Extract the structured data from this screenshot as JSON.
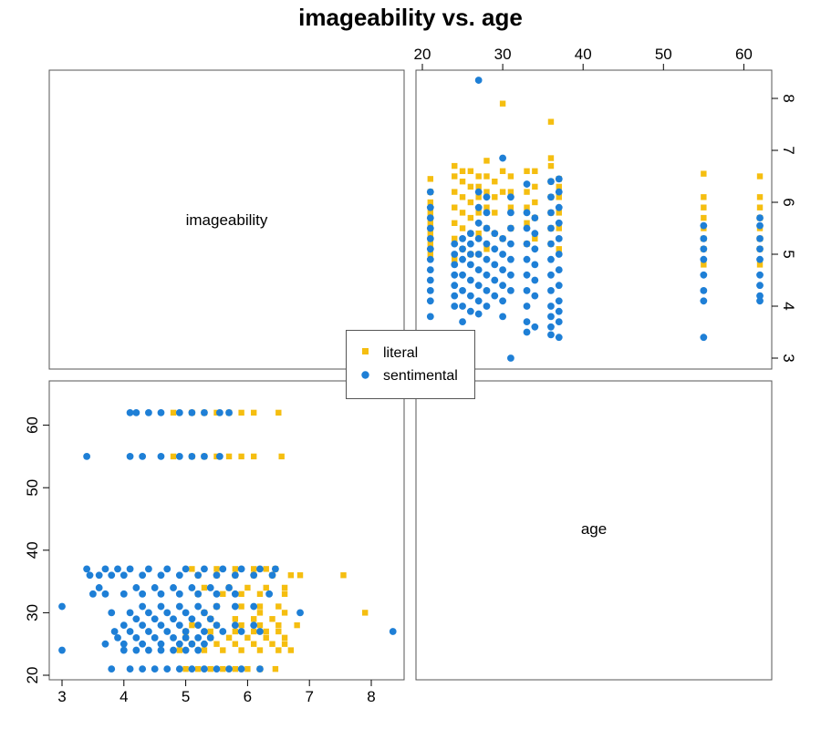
{
  "title": "imageability vs. age",
  "diag_labels": [
    "imageability",
    "age"
  ],
  "colors": {
    "literal": "#F5BE10",
    "sentimental": "#1E7FD6"
  },
  "chart_data": {
    "type": "scatter",
    "title": "imageability vs. age",
    "variables": [
      "imageability",
      "age"
    ],
    "axes": {
      "imageability": {
        "range": [
          3,
          8.4
        ],
        "ticks": [
          "3",
          "4",
          "5",
          "6",
          "7",
          "8"
        ]
      },
      "age": {
        "range": [
          20,
          63
        ],
        "ticks": [
          "20",
          "30",
          "40",
          "50",
          "60"
        ]
      }
    },
    "legend": {
      "position": "center",
      "entries": [
        "literal",
        "sentimental"
      ]
    },
    "series": [
      {
        "name": "literal",
        "marker": "square",
        "color": "#F5BE10",
        "points": [
          [
            5.0,
            21
          ],
          [
            5.2,
            21
          ],
          [
            5.4,
            21
          ],
          [
            5.6,
            21
          ],
          [
            5.8,
            21
          ],
          [
            6.0,
            21
          ],
          [
            6.2,
            21
          ],
          [
            6.45,
            21
          ],
          [
            4.9,
            24
          ],
          [
            5.3,
            24
          ],
          [
            5.6,
            24
          ],
          [
            5.9,
            24
          ],
          [
            6.2,
            24
          ],
          [
            6.5,
            24
          ],
          [
            6.7,
            24
          ],
          [
            5.1,
            25
          ],
          [
            5.5,
            25
          ],
          [
            5.8,
            25
          ],
          [
            6.1,
            25
          ],
          [
            6.4,
            25
          ],
          [
            6.6,
            25
          ],
          [
            5.0,
            26
          ],
          [
            5.4,
            26
          ],
          [
            5.7,
            26
          ],
          [
            6.0,
            26
          ],
          [
            6.3,
            26
          ],
          [
            6.6,
            26
          ],
          [
            5.0,
            27
          ],
          [
            5.4,
            27
          ],
          [
            5.8,
            27
          ],
          [
            6.1,
            27
          ],
          [
            6.3,
            27
          ],
          [
            6.5,
            27
          ],
          [
            5.1,
            28
          ],
          [
            5.5,
            28
          ],
          [
            5.9,
            28
          ],
          [
            6.2,
            28
          ],
          [
            6.5,
            28
          ],
          [
            6.8,
            28
          ],
          [
            5.4,
            29
          ],
          [
            5.8,
            29
          ],
          [
            6.1,
            29
          ],
          [
            6.4,
            29
          ],
          [
            7.9,
            30
          ],
          [
            5.3,
            30
          ],
          [
            6.2,
            30
          ],
          [
            6.6,
            30
          ],
          [
            5.5,
            31
          ],
          [
            5.9,
            31
          ],
          [
            6.2,
            31
          ],
          [
            6.5,
            31
          ],
          [
            5.2,
            33
          ],
          [
            5.6,
            33
          ],
          [
            5.9,
            33
          ],
          [
            6.2,
            33
          ],
          [
            6.6,
            33
          ],
          [
            5.3,
            34
          ],
          [
            5.7,
            34
          ],
          [
            6.0,
            34
          ],
          [
            6.3,
            34
          ],
          [
            6.6,
            34
          ],
          [
            5.2,
            36
          ],
          [
            5.5,
            36
          ],
          [
            5.8,
            36
          ],
          [
            6.1,
            36
          ],
          [
            6.4,
            36
          ],
          [
            6.7,
            36
          ],
          [
            6.85,
            36
          ],
          [
            7.55,
            36
          ],
          [
            5.1,
            37
          ],
          [
            5.5,
            37
          ],
          [
            5.8,
            37
          ],
          [
            6.1,
            37
          ],
          [
            6.3,
            37
          ],
          [
            6.45,
            37
          ],
          [
            4.8,
            55
          ],
          [
            5.1,
            55
          ],
          [
            5.3,
            55
          ],
          [
            5.5,
            55
          ],
          [
            5.7,
            55
          ],
          [
            5.9,
            55
          ],
          [
            6.1,
            55
          ],
          [
            6.55,
            55
          ],
          [
            4.8,
            62
          ],
          [
            5.1,
            62
          ],
          [
            5.3,
            62
          ],
          [
            5.5,
            62
          ],
          [
            5.7,
            62
          ],
          [
            5.9,
            62
          ],
          [
            6.1,
            62
          ],
          [
            6.5,
            62
          ]
        ]
      },
      {
        "name": "sentimental",
        "marker": "circle",
        "color": "#1E7FD6",
        "points": [
          [
            3.8,
            21
          ],
          [
            4.1,
            21
          ],
          [
            4.3,
            21
          ],
          [
            4.5,
            21
          ],
          [
            4.7,
            21
          ],
          [
            4.9,
            21
          ],
          [
            5.1,
            21
          ],
          [
            5.3,
            21
          ],
          [
            5.5,
            21
          ],
          [
            5.7,
            21
          ],
          [
            5.9,
            21
          ],
          [
            6.2,
            21
          ],
          [
            3.0,
            24
          ],
          [
            4.0,
            24
          ],
          [
            4.2,
            24
          ],
          [
            4.4,
            24
          ],
          [
            4.6,
            24
          ],
          [
            4.8,
            24
          ],
          [
            5.0,
            24
          ],
          [
            5.2,
            24
          ],
          [
            3.7,
            25
          ],
          [
            4.0,
            25
          ],
          [
            4.3,
            25
          ],
          [
            4.6,
            25
          ],
          [
            4.9,
            25
          ],
          [
            5.1,
            25
          ],
          [
            5.3,
            25
          ],
          [
            3.9,
            26
          ],
          [
            4.2,
            26
          ],
          [
            4.5,
            26
          ],
          [
            4.8,
            26
          ],
          [
            5.0,
            26
          ],
          [
            5.2,
            26
          ],
          [
            5.4,
            26
          ],
          [
            8.35,
            27
          ],
          [
            3.85,
            27
          ],
          [
            4.1,
            27
          ],
          [
            4.4,
            27
          ],
          [
            4.7,
            27
          ],
          [
            5.0,
            27
          ],
          [
            5.3,
            27
          ],
          [
            5.6,
            27
          ],
          [
            5.9,
            27
          ],
          [
            6.2,
            27
          ],
          [
            4.0,
            28
          ],
          [
            4.3,
            28
          ],
          [
            4.6,
            28
          ],
          [
            4.9,
            28
          ],
          [
            5.2,
            28
          ],
          [
            5.5,
            28
          ],
          [
            5.8,
            28
          ],
          [
            6.1,
            28
          ],
          [
            4.2,
            29
          ],
          [
            4.5,
            29
          ],
          [
            4.8,
            29
          ],
          [
            5.1,
            29
          ],
          [
            5.4,
            29
          ],
          [
            3.8,
            30
          ],
          [
            4.1,
            30
          ],
          [
            4.4,
            30
          ],
          [
            4.7,
            30
          ],
          [
            5.0,
            30
          ],
          [
            5.3,
            30
          ],
          [
            6.85,
            30
          ],
          [
            3.0,
            31
          ],
          [
            4.3,
            31
          ],
          [
            4.6,
            31
          ],
          [
            4.9,
            31
          ],
          [
            5.2,
            31
          ],
          [
            5.5,
            31
          ],
          [
            5.8,
            31
          ],
          [
            6.1,
            31
          ],
          [
            3.5,
            33
          ],
          [
            3.7,
            33
          ],
          [
            4.0,
            33
          ],
          [
            4.3,
            33
          ],
          [
            4.6,
            33
          ],
          [
            4.9,
            33
          ],
          [
            5.2,
            33
          ],
          [
            5.5,
            33
          ],
          [
            5.8,
            33
          ],
          [
            6.35,
            33
          ],
          [
            3.6,
            34
          ],
          [
            4.2,
            34
          ],
          [
            4.5,
            34
          ],
          [
            4.8,
            34
          ],
          [
            5.1,
            34
          ],
          [
            5.4,
            34
          ],
          [
            5.7,
            34
          ],
          [
            3.45,
            36
          ],
          [
            3.6,
            36
          ],
          [
            3.8,
            36
          ],
          [
            4.0,
            36
          ],
          [
            4.3,
            36
          ],
          [
            4.6,
            36
          ],
          [
            4.9,
            36
          ],
          [
            5.2,
            36
          ],
          [
            5.5,
            36
          ],
          [
            5.8,
            36
          ],
          [
            6.1,
            36
          ],
          [
            6.4,
            36
          ],
          [
            3.4,
            37
          ],
          [
            3.7,
            37
          ],
          [
            3.9,
            37
          ],
          [
            4.1,
            37
          ],
          [
            4.4,
            37
          ],
          [
            4.7,
            37
          ],
          [
            5.0,
            37
          ],
          [
            5.3,
            37
          ],
          [
            5.6,
            37
          ],
          [
            5.9,
            37
          ],
          [
            6.2,
            37
          ],
          [
            6.45,
            37
          ],
          [
            3.4,
            55
          ],
          [
            4.1,
            55
          ],
          [
            4.3,
            55
          ],
          [
            4.6,
            55
          ],
          [
            4.9,
            55
          ],
          [
            5.1,
            55
          ],
          [
            5.3,
            55
          ],
          [
            5.55,
            55
          ],
          [
            4.1,
            62
          ],
          [
            4.2,
            62
          ],
          [
            4.4,
            62
          ],
          [
            4.6,
            62
          ],
          [
            4.9,
            62
          ],
          [
            5.1,
            62
          ],
          [
            5.3,
            62
          ],
          [
            5.55,
            62
          ],
          [
            5.7,
            62
          ]
        ]
      }
    ]
  }
}
